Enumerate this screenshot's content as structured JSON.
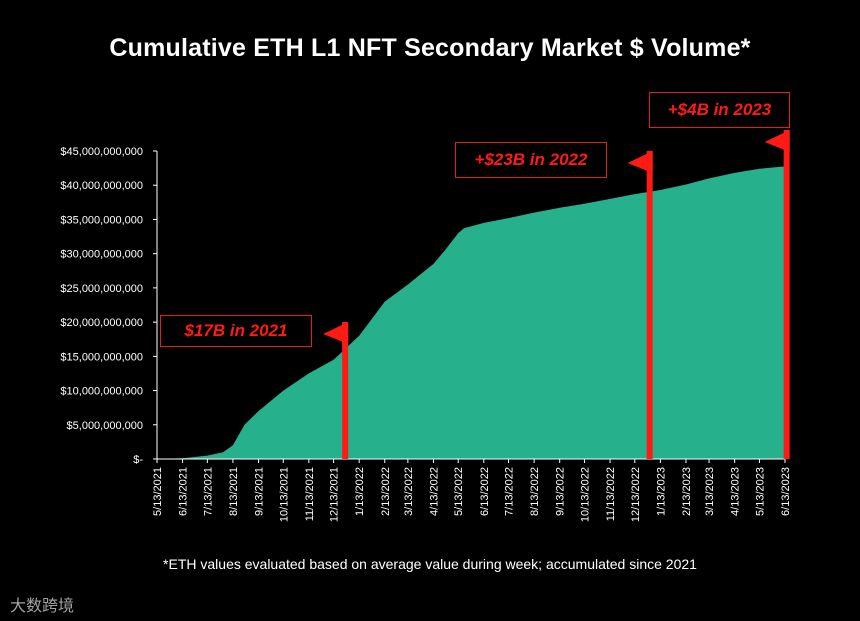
{
  "title": "Cumulative ETH L1 NFT Secondary Market $ Volume*",
  "footnote": "*ETH values evaluated based on average value during week; accumulated since 2021",
  "watermark": "大数跨境",
  "colors": {
    "area": "#27b08c",
    "flag": "#ff1a14",
    "background": "#000000",
    "axis": "#ffffff"
  },
  "annotations": [
    {
      "text": "$17B in 2021"
    },
    {
      "text": "+$23B in 2022"
    },
    {
      "text": "+$4B in 2023"
    }
  ],
  "chart_data": {
    "type": "area",
    "title": "Cumulative ETH L1 NFT Secondary Market $ Volume*",
    "xlabel": "",
    "ylabel": "",
    "ylim": [
      0,
      45000000000
    ],
    "ytick_values": [
      0,
      5000000000,
      10000000000,
      15000000000,
      20000000000,
      25000000000,
      30000000000,
      35000000000,
      40000000000,
      45000000000
    ],
    "ytick_labels": [
      "$-",
      "$5,000,000,000",
      "$10,000,000,000",
      "$15,000,000,000",
      "$20,000,000,000",
      "$25,000,000,000",
      "$30,000,000,000",
      "$35,000,000,000",
      "$40,000,000,000",
      "$45,000,000,000"
    ],
    "xtick_labels": [
      "5/13/2021",
      "6/13/2021",
      "7/13/2021",
      "8/13/2021",
      "9/13/2021",
      "10/13/2021",
      "11/13/2021",
      "12/13/2021",
      "1/13/2022",
      "2/13/2022",
      "3/13/2022",
      "4/13/2022",
      "5/13/2022",
      "6/13/2022",
      "7/13/2022",
      "8/13/2022",
      "9/13/2022",
      "10/13/2022",
      "11/13/2022",
      "12/13/2022",
      "1/13/2023",
      "2/13/2023",
      "3/13/2023",
      "4/13/2023",
      "5/13/2023",
      "6/13/2023"
    ],
    "x": [
      "5/13/2021",
      "6/13/2021",
      "7/13/2021",
      "8/1/2021",
      "8/13/2021",
      "8/20/2021",
      "8/27/2021",
      "9/13/2021",
      "10/13/2021",
      "11/13/2021",
      "12/13/2021",
      "1/13/2022",
      "2/13/2022",
      "3/13/2022",
      "4/13/2022",
      "4/27/2022",
      "5/13/2022",
      "5/20/2022",
      "6/13/2022",
      "7/13/2022",
      "8/13/2022",
      "9/13/2022",
      "10/13/2022",
      "11/13/2022",
      "12/13/2022",
      "1/13/2023",
      "2/13/2023",
      "3/13/2023",
      "4/13/2023",
      "5/13/2023",
      "6/16/2023"
    ],
    "series": [
      {
        "values": [
          0,
          100000000,
          500000000,
          1000000000,
          2000000000,
          3500000000,
          5000000000,
          7000000000,
          10000000000,
          12500000000,
          14500000000,
          18000000000,
          23000000000,
          25500000000,
          28500000000,
          30500000000,
          33000000000,
          33700000000,
          34500000000,
          35200000000,
          36000000000,
          36700000000,
          37300000000,
          38000000000,
          38700000000,
          39300000000,
          40100000000,
          41000000000,
          41800000000,
          42400000000,
          42800000000
        ]
      }
    ],
    "flags": [
      {
        "date": "12/27/2021",
        "label": "$17B in 2021"
      },
      {
        "date": "12/31/2022",
        "label": "+$23B in 2022"
      },
      {
        "date": "6/15/2023",
        "label": "+$4B in 2023"
      }
    ],
    "grid": false,
    "legend": "none"
  }
}
